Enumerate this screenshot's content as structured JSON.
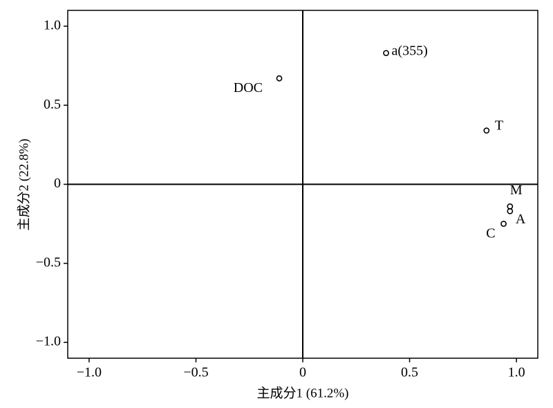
{
  "chart_data": {
    "type": "scatter",
    "x_label": "主成分1 (61.2%)",
    "y_label": "主成分2 (22.8%)",
    "xlim": [
      -1.1,
      1.1
    ],
    "ylim": [
      -1.1,
      1.1
    ],
    "xticks": [
      {
        "value": -1,
        "label": "−1.0"
      },
      {
        "value": -0.5,
        "label": "−0.5"
      },
      0,
      0.5,
      {
        "value": 1,
        "label": "1.0"
      }
    ],
    "yticks": [
      {
        "value": -1,
        "label": "−1.0"
      },
      {
        "value": -0.5,
        "label": "−0.5"
      },
      0,
      0.5,
      {
        "value": 1,
        "label": "1.0"
      }
    ],
    "color": "#000000",
    "points": [
      {
        "label": "DOC",
        "x": -0.11,
        "y": 0.67
      },
      {
        "label": "a(355)",
        "x": 0.39,
        "y": 0.83
      },
      {
        "label": "T",
        "x": 0.86,
        "y": 0.34
      },
      {
        "label": "M",
        "x": 0.97,
        "y": -0.14
      },
      {
        "label": "A",
        "x": 0.97,
        "y": -0.17
      },
      {
        "label": "C",
        "x": 0.94,
        "y": -0.25
      }
    ]
  }
}
